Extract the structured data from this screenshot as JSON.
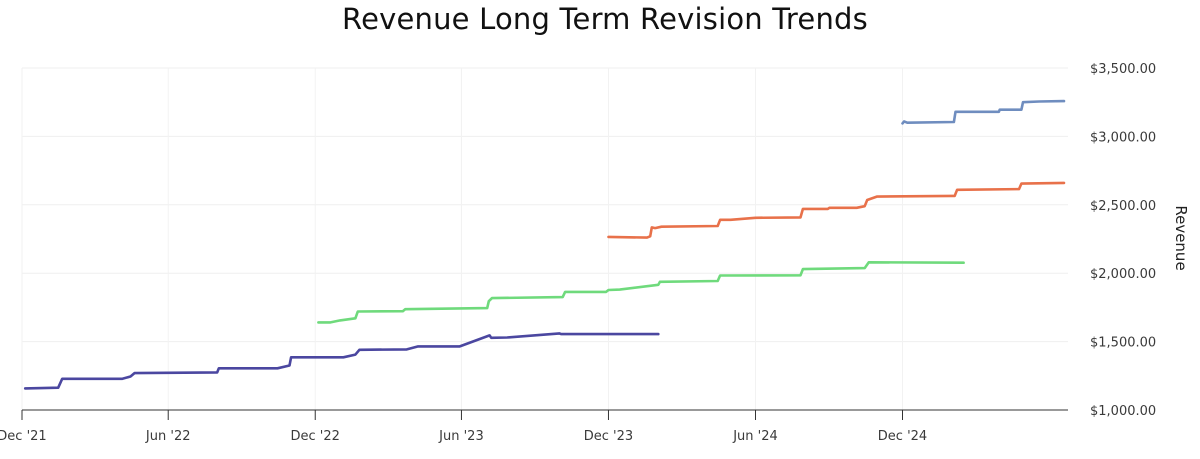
{
  "chart_data": {
    "type": "line",
    "title": "Revenue Long Term Revision Trends",
    "xlabel": "",
    "ylabel": "Revenue",
    "ylim": [
      1000,
      3500
    ],
    "xlim": [
      "2021-12-01",
      "2025-06-25"
    ],
    "grid": true,
    "legend": "none",
    "x_ticks": [
      {
        "date": "2021-12-01",
        "label": "Dec '21"
      },
      {
        "date": "2022-06-01",
        "label": "Jun '22"
      },
      {
        "date": "2022-12-01",
        "label": "Dec '22"
      },
      {
        "date": "2023-06-01",
        "label": "Jun '23"
      },
      {
        "date": "2023-12-01",
        "label": "Dec '23"
      },
      {
        "date": "2024-06-01",
        "label": "Jun '24"
      },
      {
        "date": "2024-12-01",
        "label": "Dec '24"
      }
    ],
    "y_ticks": [
      {
        "value": 1000,
        "label": "$1,000.00"
      },
      {
        "value": 1500,
        "label": "$1,500.00"
      },
      {
        "value": 2000,
        "label": "$2,000.00"
      },
      {
        "value": 2500,
        "label": "$2,500.00"
      },
      {
        "value": 3000,
        "label": "$3,000.00"
      },
      {
        "value": 3500,
        "label": "$3,500.00"
      }
    ],
    "series": [
      {
        "color": "#4b47a0",
        "points": [
          [
            "2021-12-05",
            1158
          ],
          [
            "2022-01-15",
            1163
          ],
          [
            "2022-01-20",
            1228
          ],
          [
            "2022-04-05",
            1228
          ],
          [
            "2022-04-15",
            1245
          ],
          [
            "2022-04-20",
            1270
          ],
          [
            "2022-08-01",
            1275
          ],
          [
            "2022-08-03",
            1305
          ],
          [
            "2022-10-15",
            1305
          ],
          [
            "2022-10-30",
            1325
          ],
          [
            "2022-11-01",
            1385
          ],
          [
            "2023-01-05",
            1385
          ],
          [
            "2023-01-20",
            1405
          ],
          [
            "2023-01-25",
            1440
          ],
          [
            "2023-03-25",
            1443
          ],
          [
            "2023-04-08",
            1465
          ],
          [
            "2023-05-30",
            1465
          ],
          [
            "2023-07-06",
            1545
          ],
          [
            "2023-07-08",
            1528
          ],
          [
            "2023-07-28",
            1530
          ],
          [
            "2023-10-01",
            1560
          ],
          [
            "2023-10-03",
            1555
          ],
          [
            "2024-02-01",
            1555
          ]
        ]
      },
      {
        "color": "#6fda7c",
        "points": [
          [
            "2022-12-05",
            1640
          ],
          [
            "2022-12-20",
            1640
          ],
          [
            "2023-01-01",
            1655
          ],
          [
            "2023-01-20",
            1670
          ],
          [
            "2023-01-23",
            1720
          ],
          [
            "2023-03-20",
            1722
          ],
          [
            "2023-03-23",
            1737
          ],
          [
            "2023-07-03",
            1745
          ],
          [
            "2023-07-05",
            1795
          ],
          [
            "2023-07-09",
            1818
          ],
          [
            "2023-10-05",
            1825
          ],
          [
            "2023-10-08",
            1863
          ],
          [
            "2023-11-28",
            1863
          ],
          [
            "2023-12-01",
            1877
          ],
          [
            "2023-12-15",
            1880
          ],
          [
            "2024-02-01",
            1915
          ],
          [
            "2024-02-03",
            1937
          ],
          [
            "2024-04-15",
            1943
          ],
          [
            "2024-04-18",
            1983
          ],
          [
            "2024-07-27",
            1985
          ],
          [
            "2024-07-30",
            2030
          ],
          [
            "2024-10-15",
            2037
          ],
          [
            "2024-10-20",
            2080
          ],
          [
            "2025-02-15",
            2077
          ]
        ]
      },
      {
        "color": "#e8714a",
        "points": [
          [
            "2023-12-01",
            2265
          ],
          [
            "2024-01-18",
            2260
          ],
          [
            "2024-01-22",
            2270
          ],
          [
            "2024-01-24",
            2335
          ],
          [
            "2024-01-28",
            2330
          ],
          [
            "2024-02-05",
            2340
          ],
          [
            "2024-04-15",
            2345
          ],
          [
            "2024-04-18",
            2390
          ],
          [
            "2024-05-01",
            2390
          ],
          [
            "2024-06-01",
            2405
          ],
          [
            "2024-07-27",
            2408
          ],
          [
            "2024-07-30",
            2470
          ],
          [
            "2024-08-30",
            2470
          ],
          [
            "2024-09-01",
            2478
          ],
          [
            "2024-10-05",
            2478
          ],
          [
            "2024-10-15",
            2490
          ],
          [
            "2024-10-18",
            2535
          ],
          [
            "2024-10-30",
            2560
          ],
          [
            "2025-02-01",
            2565
          ],
          [
            "2025-02-04",
            2565
          ],
          [
            "2025-02-07",
            2610
          ],
          [
            "2025-04-25",
            2615
          ],
          [
            "2025-04-28",
            2655
          ],
          [
            "2025-06-20",
            2660
          ]
        ]
      },
      {
        "color": "#6f8dbf",
        "points": [
          [
            "2024-12-01",
            3095
          ],
          [
            "2024-12-03",
            3110
          ],
          [
            "2024-12-07",
            3100
          ],
          [
            "2025-02-03",
            3105
          ],
          [
            "2025-02-05",
            3180
          ],
          [
            "2025-03-31",
            3180
          ],
          [
            "2025-04-01",
            3195
          ],
          [
            "2025-04-28",
            3195
          ],
          [
            "2025-04-30",
            3250
          ],
          [
            "2025-05-20",
            3255
          ],
          [
            "2025-06-20",
            3258
          ]
        ]
      }
    ]
  }
}
